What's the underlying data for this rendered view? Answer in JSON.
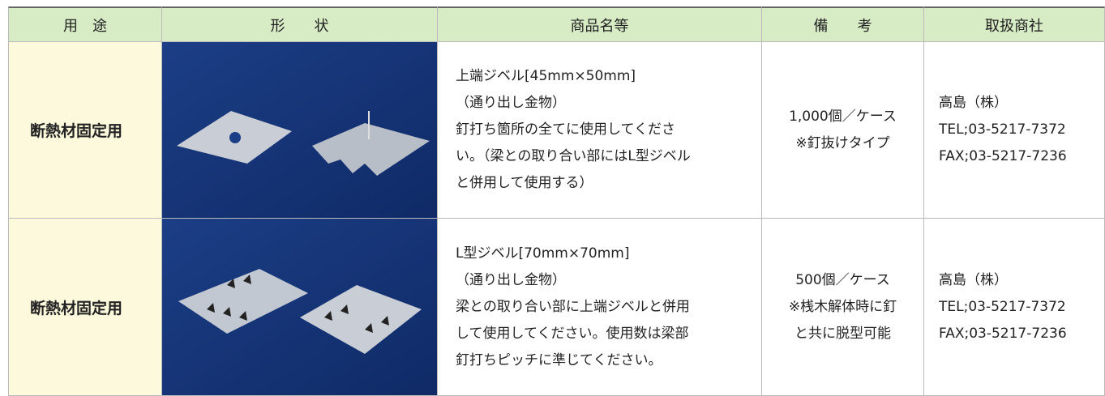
{
  "header": {
    "columns": [
      "用　途",
      "形　　状",
      "商品名等",
      "備　　考",
      "取扱商社"
    ]
  },
  "table": {
    "rows": [
      {
        "use": "断熱材固定用",
        "product": [
          "上端ジベル[45mm×50mm]",
          "（通り出し金物）",
          "釘打ち箇所の全てに使用してくださ",
          "い。（梁との取り合い部にはL型ジベル",
          "と併用して使用する）"
        ],
        "notes": [
          "1,000個／ケース",
          "※釘抜けタイプ"
        ],
        "company": [
          "高島（株）",
          "TEL;03-5217-7372",
          "FAX;03-5217-7236"
        ]
      },
      {
        "use": "断熱材固定用",
        "product": [
          "L型ジベル[70mm×70mm]",
          "（通り出し金物）",
          "梁との取り合い部に上端ジベルと併用",
          "して使用してください。使用数は梁部",
          "釘打ちピッチに準じてください。"
        ],
        "notes": [
          "500個／ケース",
          "※桟木解体時に釘",
          "と共に脱型可能"
        ],
        "company": [
          "高島（株）",
          "TEL;03-5217-7372",
          "FAX;03-5217-7236"
        ]
      }
    ]
  }
}
